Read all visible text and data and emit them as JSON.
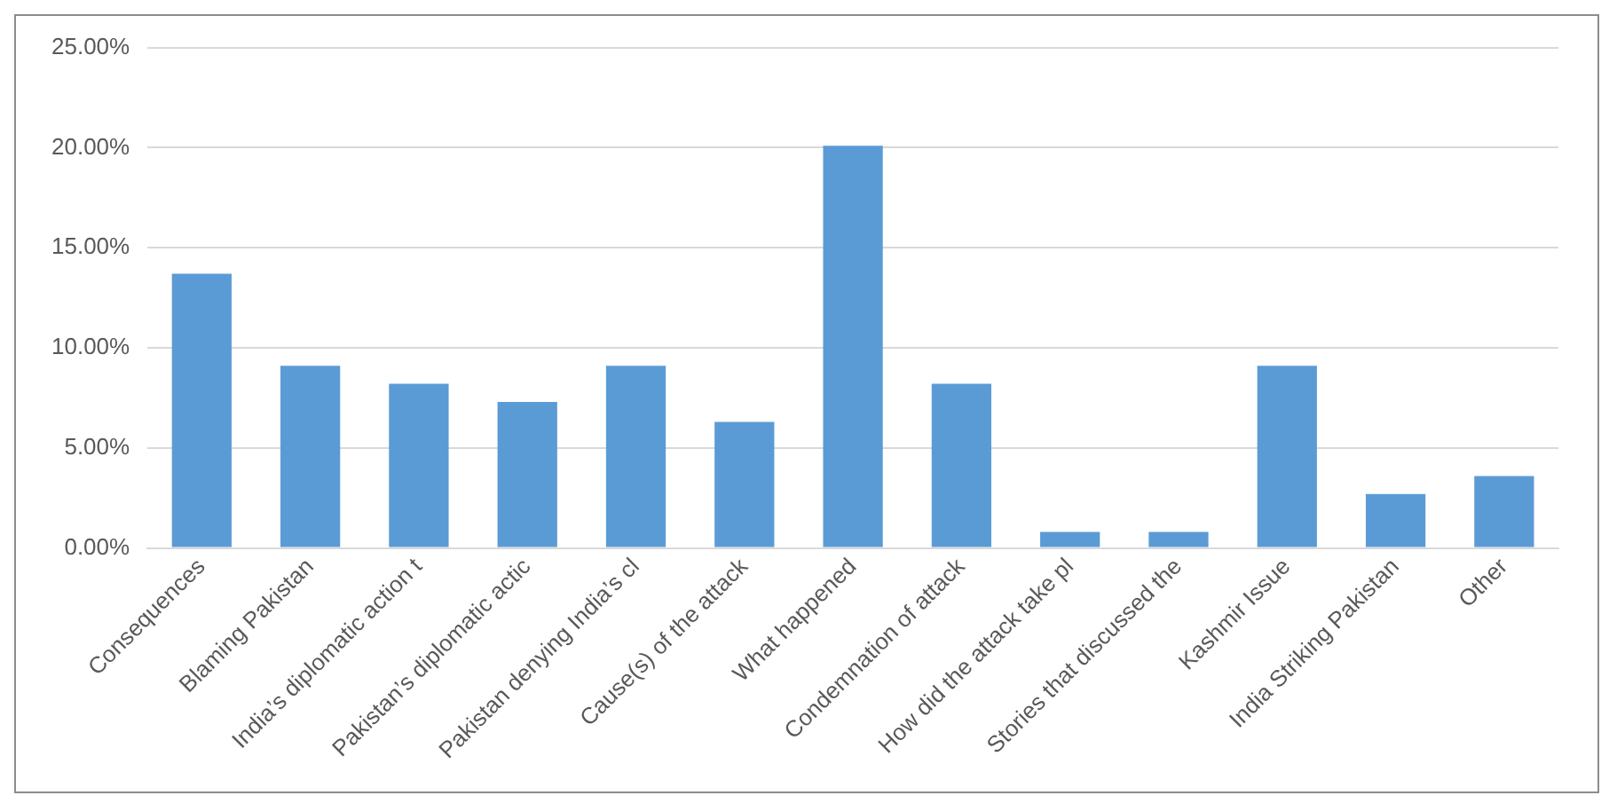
{
  "chart_data": {
    "type": "bar",
    "categories": [
      "Consequences",
      "Blaming Pakistan",
      "India’s diplomatic action t",
      "Pakistan’s diplomatic actic",
      "Pakistan denying India’s cl",
      "Cause(s) of the attack",
      "What happened",
      "Condemnation of attack",
      "How did the attack take pl",
      "Stories that discussed the",
      "Kashmir Issue",
      "India Striking Pakistan",
      "Other"
    ],
    "series": [
      {
        "color": "#5b9bd5",
        "values": [
          13.7,
          9.1,
          8.2,
          7.3,
          9.1,
          6.3,
          20.1,
          8.2,
          0.8,
          0.8,
          9.1,
          2.7,
          3.6
        ]
      }
    ],
    "ylim": [
      0,
      25
    ],
    "yticks": [
      {
        "value": 0,
        "label": "0.00%"
      },
      {
        "value": 5,
        "label": "5.00%"
      },
      {
        "value": 10,
        "label": "10.00%"
      },
      {
        "value": 15,
        "label": "15.00%"
      },
      {
        "value": 20,
        "label": "20.00%"
      },
      {
        "value": 25,
        "label": "25.00%"
      }
    ],
    "grid": "y"
  }
}
